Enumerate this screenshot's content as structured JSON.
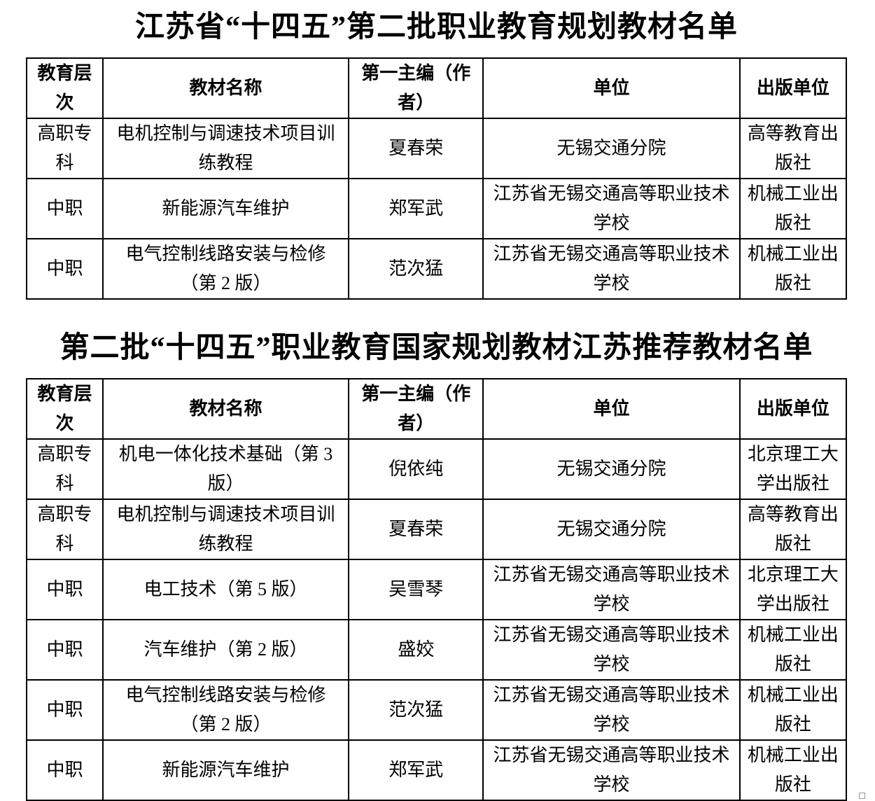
{
  "page": {
    "background": "#ffffff",
    "text_color": "#000000",
    "border_color": "#000000"
  },
  "tables": [
    {
      "title": "江苏省“十四五”第二批职业教育规划教材名单",
      "headers": [
        "教育层次",
        "教材名称",
        "第一主编（作者）",
        "单位",
        "出版单位"
      ],
      "rows": [
        [
          "高职专科",
          "电机控制与调速技术项目训练教程",
          "夏春荣",
          "无锡交通分院",
          "高等教育出版社"
        ],
        [
          "中职",
          "新能源汽车维护",
          "郑军武",
          "江苏省无锡交通高等职业技术学校",
          "机械工业出版社"
        ],
        [
          "中职",
          "电气控制线路安装与检修（第 2 版）",
          "范次猛",
          "江苏省无锡交通高等职业技术学校",
          "机械工业出版社"
        ]
      ]
    },
    {
      "title": "第二批“十四五”职业教育国家规划教材江苏推荐教材名单",
      "headers": [
        "教育层次",
        "教材名称",
        "第一主编（作者）",
        "单位",
        "出版单位"
      ],
      "rows": [
        [
          "高职专科",
          "机电一体化技术基础（第 3 版）",
          "倪依纯",
          "无锡交通分院",
          "北京理工大学出版社"
        ],
        [
          "高职专科",
          "电机控制与调速技术项目训练教程",
          "夏春荣",
          "无锡交通分院",
          "高等教育出版社"
        ],
        [
          "中职",
          "电工技术（第 5 版）",
          "吴雪琴",
          "江苏省无锡交通高等职业技术学校",
          "北京理工大学出版社"
        ],
        [
          "中职",
          "汽车维护（第 2 版）",
          "盛姣",
          "江苏省无锡交通高等职业技术学校",
          "机械工业出版社"
        ],
        [
          "中职",
          "电气控制线路安装与检修（第 2 版）",
          "范次猛",
          "江苏省无锡交通高等职业技术学校",
          "机械工业出版社"
        ],
        [
          "中职",
          "新能源汽车维护",
          "郑军武",
          "江苏省无锡交通高等职业技术学校",
          "机械工业出版社"
        ]
      ]
    }
  ],
  "artifact": {
    "anchor_square": ""
  }
}
